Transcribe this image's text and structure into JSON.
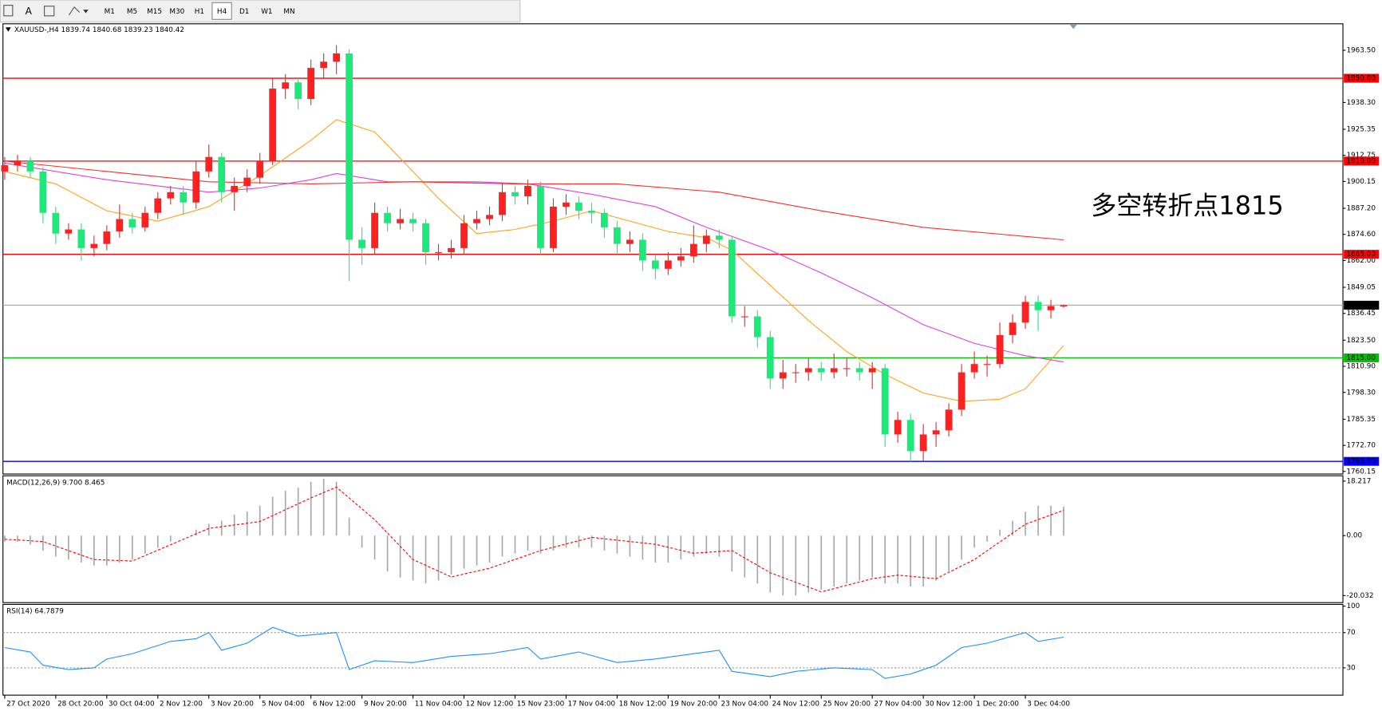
{
  "toolbar": {
    "font_button": "A",
    "timeframes": [
      "M1",
      "M5",
      "M15",
      "M30",
      "H1",
      "H4",
      "D1",
      "W1",
      "MN"
    ],
    "active": "H4"
  },
  "chart_data": [
    {
      "type": "candlestick",
      "title": "XAUUSD-,H4  1839.74 1840.68 1839.23 1840.42",
      "annotation": {
        "text": "多空转折点1815",
        "color": "#ff0000"
      },
      "up_color": "#ff2020",
      "down_color": "#1de97b",
      "categories": [
        "27 Oct 2020",
        null,
        null,
        null,
        "28 Oct 20:00",
        null,
        null,
        null,
        "30 Oct 04:00",
        null,
        null,
        null,
        "2 Nov 12:00",
        null,
        null,
        null,
        "3 Nov 20:00",
        null,
        null,
        null,
        "5 Nov 04:00",
        null,
        null,
        null,
        "6 Nov 12:00",
        null,
        null,
        null,
        "9 Nov 20:00",
        null,
        null,
        null,
        "11 Nov 04:00",
        null,
        null,
        null,
        "12 Nov 12:00",
        null,
        null,
        null,
        "15 Nov 23:00",
        null,
        null,
        null,
        "17 Nov 04:00",
        null,
        null,
        null,
        "18 Nov 12:00",
        null,
        null,
        null,
        "19 Nov 20:00",
        null,
        null,
        null,
        "23 Nov 04:00",
        null,
        null,
        null,
        "24 Nov 12:00",
        null,
        null,
        null,
        "25 Nov 20:00",
        null,
        null,
        null,
        "27 Nov 04:00",
        null,
        null,
        null,
        "30 Nov 12:00",
        null,
        null,
        null,
        "1 Dec 20:00",
        null,
        null,
        null,
        "3 Dec 04:00",
        null,
        null,
        null
      ],
      "open": [
        1905,
        1908,
        1910,
        1905,
        1885,
        1875,
        1877,
        1868,
        1870,
        1876,
        1882,
        1878,
        1885,
        1892,
        1895,
        1890,
        1905,
        1912,
        1895,
        1898,
        1902,
        1910,
        1945,
        1948,
        1940,
        1955,
        1958,
        1962,
        1872,
        1868,
        1885,
        1880,
        1882,
        1880,
        1866,
        1866,
        1868,
        1880,
        1882,
        1884,
        1895,
        1893,
        1898,
        1868,
        1888,
        1890,
        1886,
        1885,
        1878,
        1870,
        1872,
        1862,
        1858,
        1862,
        1864,
        1870,
        1874,
        1872,
        1835,
        1835,
        1825,
        1805,
        1808,
        1808,
        1810,
        1808,
        1810,
        1810,
        1808,
        1810,
        1778,
        1785,
        1770,
        1778,
        1780,
        1790,
        1808,
        1812,
        1812,
        1826,
        1832,
        1842,
        1838,
        1839.74
      ],
      "high": [
        1912,
        1913,
        1912,
        1907,
        1888,
        1880,
        1880,
        1874,
        1879,
        1889,
        1885,
        1888,
        1895,
        1898,
        1898,
        1910,
        1918,
        1914,
        1902,
        1906,
        1914,
        1950,
        1952,
        1950,
        1959,
        1962,
        1966,
        1964,
        1878,
        1890,
        1888,
        1887,
        1885,
        1882,
        1870,
        1872,
        1884,
        1886,
        1888,
        1899,
        1898,
        1901,
        1900,
        1892,
        1894,
        1893,
        1890,
        1887,
        1881,
        1876,
        1875,
        1865,
        1866,
        1868,
        1879,
        1877,
        1877,
        1874,
        1840,
        1838,
        1828,
        1814,
        1812,
        1815,
        1813,
        1817,
        1815,
        1813,
        1813,
        1812,
        1789,
        1788,
        1783,
        1784,
        1793,
        1812,
        1818,
        1816,
        1832,
        1836,
        1845,
        1845,
        1843,
        1840.68
      ],
      "low": [
        1901,
        1905,
        1902,
        1880,
        1870,
        1872,
        1862,
        1864,
        1867,
        1873,
        1875,
        1876,
        1882,
        1889,
        1884,
        1887,
        1902,
        1890,
        1886,
        1895,
        1899,
        1908,
        1940,
        1935,
        1937,
        1950,
        1952,
        1852,
        1860,
        1865,
        1876,
        1877,
        1876,
        1860,
        1862,
        1863,
        1865,
        1877,
        1879,
        1881,
        1889,
        1889,
        1865,
        1866,
        1884,
        1882,
        1880,
        1873,
        1865,
        1866,
        1857,
        1853,
        1855,
        1859,
        1861,
        1866,
        1868,
        1832,
        1830,
        1820,
        1800,
        1800,
        1803,
        1804,
        1804,
        1805,
        1806,
        1804,
        1800,
        1772,
        1774,
        1765,
        1765,
        1772,
        1777,
        1787,
        1805,
        1806,
        1810,
        1822,
        1829,
        1828,
        1834,
        1839.23
      ],
      "close": [
        1908,
        1910,
        1905,
        1885,
        1875,
        1877,
        1868,
        1870,
        1876,
        1882,
        1878,
        1885,
        1892,
        1895,
        1890,
        1905,
        1912,
        1895,
        1898,
        1902,
        1910,
        1945,
        1948,
        1940,
        1955,
        1958,
        1962,
        1872,
        1868,
        1885,
        1880,
        1882,
        1880,
        1866,
        1866,
        1868,
        1880,
        1882,
        1884,
        1895,
        1893,
        1898,
        1868,
        1888,
        1890,
        1886,
        1885,
        1878,
        1870,
        1872,
        1862,
        1858,
        1862,
        1864,
        1870,
        1874,
        1872,
        1835,
        1835,
        1825,
        1805,
        1808,
        1808,
        1810,
        1808,
        1810,
        1810,
        1808,
        1810,
        1778,
        1785,
        1770,
        1778,
        1780,
        1790,
        1808,
        1812,
        1812,
        1826,
        1832,
        1842,
        1838,
        1840,
        1840.42
      ],
      "lines": [
        {
          "color": "#ffa31a",
          "x": [
            0,
            4,
            8,
            12,
            16,
            20,
            24,
            26,
            29,
            32,
            34,
            37,
            40,
            43,
            46,
            49,
            52,
            55,
            57,
            60,
            63,
            66,
            69,
            72,
            75,
            78,
            80,
            83
          ],
          "values": [
            1905,
            1899,
            1886,
            1881,
            1888,
            1903,
            1920,
            1930,
            1924,
            1905,
            1892,
            1875,
            1877,
            1881,
            1886,
            1881,
            1876,
            1873,
            1867,
            1850,
            1833,
            1818,
            1807,
            1798,
            1794,
            1795,
            1800,
            1821
          ]
        },
        {
          "color": "#e040e0",
          "x": [
            0,
            8,
            16,
            20,
            24,
            26,
            30,
            37,
            41,
            46,
            51,
            55,
            60,
            64,
            68,
            72,
            76,
            80,
            83
          ],
          "values": [
            1909,
            1901,
            1895,
            1897,
            1901,
            1904,
            1900,
            1900,
            1899,
            1894,
            1888,
            1878,
            1867,
            1856,
            1844,
            1831,
            1822,
            1816,
            1813
          ]
        },
        {
          "color": "#ff2a2a",
          "x": [
            0,
            8,
            16,
            24,
            32,
            40,
            48,
            56,
            64,
            72,
            83
          ],
          "values": [
            1910,
            1905,
            1900,
            1899,
            1900,
            1899,
            1899,
            1895,
            1886,
            1878,
            1872
          ]
        }
      ],
      "levels": [
        {
          "value": 1950,
          "label": "1950.00",
          "color": "#ff0000",
          "box_color": "#ff0000"
        },
        {
          "value": 1910,
          "label": "1910.00",
          "color": "#ff0000",
          "box_color": "#ff0000"
        },
        {
          "value": 1865,
          "label": "1865.00",
          "color": "#ff0000",
          "box_color": "#ff0000"
        },
        {
          "value": 1840.42,
          "label": "1840.42",
          "color": "#b0b0b0",
          "box_color": "#000000"
        },
        {
          "value": 1815,
          "label": "1815.00",
          "color": "#00c000",
          "box_color": "#00c000"
        },
        {
          "value": 1765,
          "label": "1765.00",
          "color": "#0000ff",
          "box_color": "#0000ff"
        }
      ],
      "ylim": [
        1758.9,
        1976.3
      ],
      "yticks": [
        {
          "value": 1963.5,
          "label": "1963.50"
        },
        {
          "value": 1938.3,
          "label": "1938.30"
        },
        {
          "value": 1925.35,
          "label": "1925.35"
        },
        {
          "value": 1912.75,
          "label": "1912.75"
        },
        {
          "value": 1900.15,
          "label": "1900.15"
        },
        {
          "value": 1887.2,
          "label": "1887.20"
        },
        {
          "value": 1874.6,
          "label": "1874.60"
        },
        {
          "value": 1862,
          "label": "1862.00"
        },
        {
          "value": 1849.05,
          "label": "1849.05"
        },
        {
          "value": 1836.45,
          "label": "1836.45"
        },
        {
          "value": 1823.5,
          "label": "1823.50"
        },
        {
          "value": 1810.9,
          "label": "1810.90"
        },
        {
          "value": 1798.3,
          "label": "1798.30"
        },
        {
          "value": 1785.35,
          "label": "1785.35"
        },
        {
          "value": 1772.7,
          "label": "1772.70"
        },
        {
          "value": 1760.15,
          "label": "1760.15"
        }
      ]
    },
    {
      "type": "macd",
      "title": "MACD(12,26,9) 9.700 8.465",
      "histogram": {
        "color": "#a8a8a8",
        "values": [
          -2,
          -2,
          -3,
          -5,
          -7,
          -8,
          -9,
          -10,
          -10,
          -9,
          -8,
          -6,
          -4,
          -2,
          0,
          2,
          4,
          5,
          7,
          8,
          10,
          13,
          15,
          16,
          18,
          19,
          18,
          6,
          -4,
          -8,
          -12,
          -14,
          -15,
          -16,
          -15,
          -13,
          -11,
          -10,
          -9,
          -7,
          -6,
          -5,
          -6,
          -5,
          -4,
          -4,
          -4,
          -5,
          -6,
          -7,
          -8,
          -9,
          -9,
          -8,
          -7,
          -6,
          -7,
          -12,
          -14,
          -16,
          -19,
          -20,
          -20,
          -19,
          -18,
          -17,
          -16,
          -15,
          -14,
          -16,
          -16,
          -17,
          -17,
          -15,
          -12,
          -8,
          -4,
          -2,
          2,
          5,
          8,
          10,
          10,
          9.7
        ]
      },
      "signal": {
        "color": "#ff0000",
        "x": [
          0,
          3,
          7,
          10,
          16,
          20,
          24,
          26,
          29,
          32,
          35,
          38,
          42,
          46,
          51,
          54,
          57,
          60,
          64,
          68,
          70,
          73,
          76,
          80,
          83
        ],
        "values": [
          -1.2,
          -2,
          -8,
          -8.5,
          2.4,
          4.7,
          12.6,
          16.2,
          5.3,
          -8,
          -13.8,
          -10.9,
          -5,
          -0.6,
          -2.9,
          -5.9,
          -5,
          -12.4,
          -18.8,
          -14.4,
          -13.2,
          -14.4,
          -8,
          3.8,
          8.465
        ]
      },
      "ylim": [
        -22.1,
        19.7
      ],
      "yticks": [
        18.217,
        {
          "value": 0,
          "label": "0.00"
        },
        -20.032
      ]
    },
    {
      "type": "line",
      "title": "RSI(14) 64.7879",
      "series": [
        {
          "color": "#1e90ff",
          "x": [
            0,
            2,
            3,
            5,
            7,
            8,
            10,
            13,
            15,
            16,
            17,
            19,
            21,
            23,
            26,
            27,
            29,
            32,
            35,
            38,
            41,
            42,
            45,
            48,
            51,
            54,
            56,
            57,
            60,
            62,
            65,
            68,
            69,
            71,
            73,
            75,
            77,
            79,
            80,
            81,
            83
          ],
          "values": [
            53,
            48,
            33,
            28,
            30,
            40,
            46,
            60,
            63,
            70,
            50,
            58,
            76,
            66,
            70,
            28,
            38,
            36,
            43,
            46,
            53,
            40,
            48,
            36,
            40,
            46,
            50,
            26,
            20,
            26,
            30,
            28,
            18,
            23,
            33,
            53,
            58,
            66,
            70,
            60,
            64.7879
          ]
        }
      ],
      "levels": [
        {
          "value": 70
        },
        {
          "value": 30
        }
      ],
      "ylim": [
        0,
        100
      ],
      "yticks": [
        100,
        70,
        30
      ]
    }
  ]
}
